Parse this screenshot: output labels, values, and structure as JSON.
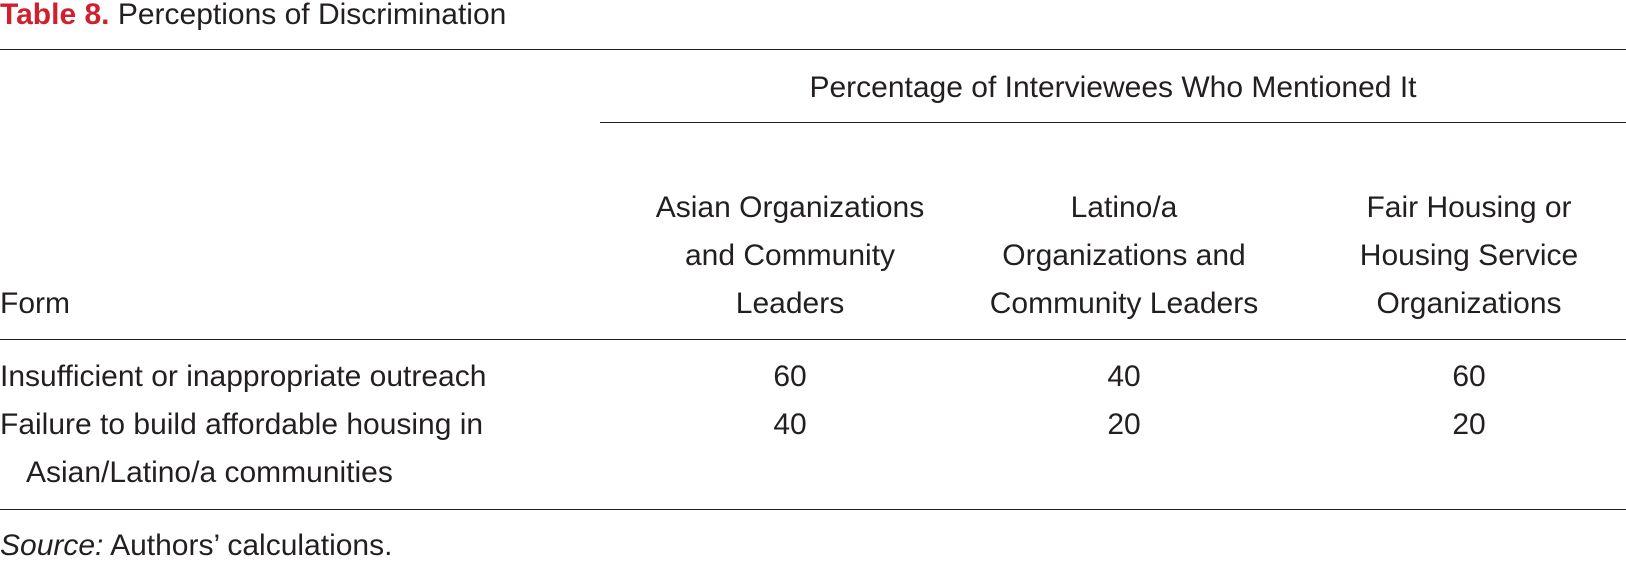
{
  "title": {
    "label": "Table 8.",
    "text": "Perceptions of Discrimination"
  },
  "table": {
    "spanner": "Percentage of Interviewees Who Mentioned It",
    "columns": [
      "Form",
      "Asian Organizations and Community Leaders",
      "Latino/a Organizations and Community Leaders",
      "Fair Housing or Housing Service Organizations"
    ],
    "rows": [
      [
        "Insufficient or inappropriate outreach",
        60,
        40,
        60
      ],
      [
        "Failure to build affordable housing in Asian/Latino/a communities",
        40,
        20,
        20
      ]
    ]
  },
  "note": {
    "label": "Source:",
    "text": "Authors’ calculations."
  }
}
